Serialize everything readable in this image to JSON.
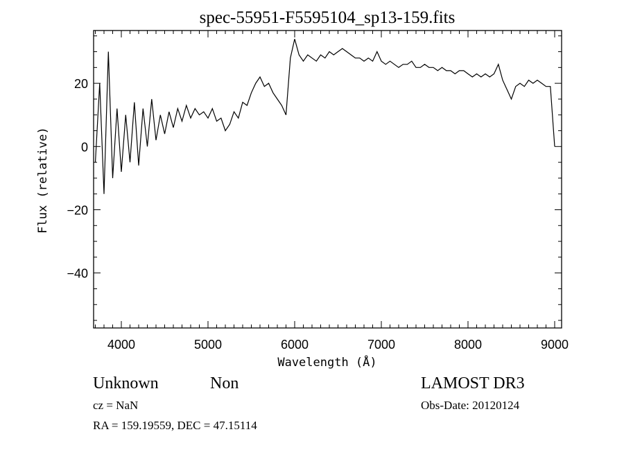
{
  "chart_data": {
    "type": "line",
    "title": "spec-55951-F5595104_sp13-159.fits",
    "xlabel": "Wavelength (Å)",
    "ylabel": "Flux (relative)",
    "xlim": [
      3680,
      9080
    ],
    "ylim": [
      -57.4,
      36.7
    ],
    "x_ticks": [
      4000,
      5000,
      6000,
      7000,
      8000,
      9000
    ],
    "x_tick_labels": [
      "4000",
      "5000",
      "6000",
      "7000",
      "8000",
      "9000"
    ],
    "y_ticks": [
      -40,
      -20,
      0,
      20
    ],
    "y_tick_labels": [
      "−40",
      "−20",
      "0",
      "20"
    ],
    "x_minor_step": 100,
    "y_minor_step": 5,
    "grid": false,
    "series": [
      {
        "name": "spectrum",
        "x_start": 3700,
        "x_step": 50,
        "y": [
          -5,
          20,
          -15,
          30,
          -10,
          12,
          -8,
          10,
          -5,
          14,
          -6,
          12,
          0,
          15,
          2,
          10,
          4,
          11,
          6,
          12,
          8,
          13,
          9,
          12,
          10,
          11,
          9,
          12,
          8,
          9,
          5,
          7,
          11,
          9,
          14,
          13,
          17,
          20,
          22,
          19,
          20,
          17,
          15,
          13,
          10,
          28,
          34,
          29,
          27,
          29,
          28,
          27,
          29,
          28,
          30,
          29,
          30,
          31,
          30,
          29,
          28,
          28,
          27,
          28,
          27,
          30,
          27,
          26,
          27,
          26,
          25,
          26,
          26,
          27,
          25,
          25,
          26,
          25,
          25,
          24,
          25,
          24,
          24,
          23,
          24,
          24,
          23,
          22,
          23,
          22,
          23,
          22,
          23,
          26,
          21,
          18,
          15,
          19,
          20,
          19,
          21,
          20,
          21,
          20,
          19,
          19,
          0
        ]
      }
    ]
  },
  "annotations": {
    "class_label": "Unknown",
    "subclass_label": "Non",
    "survey": "LAMOST DR3",
    "redshift": "cz = NaN",
    "obs_date": "Obs-Date: 20120124",
    "coords": "RA = 159.19559, DEC =  47.15114"
  }
}
